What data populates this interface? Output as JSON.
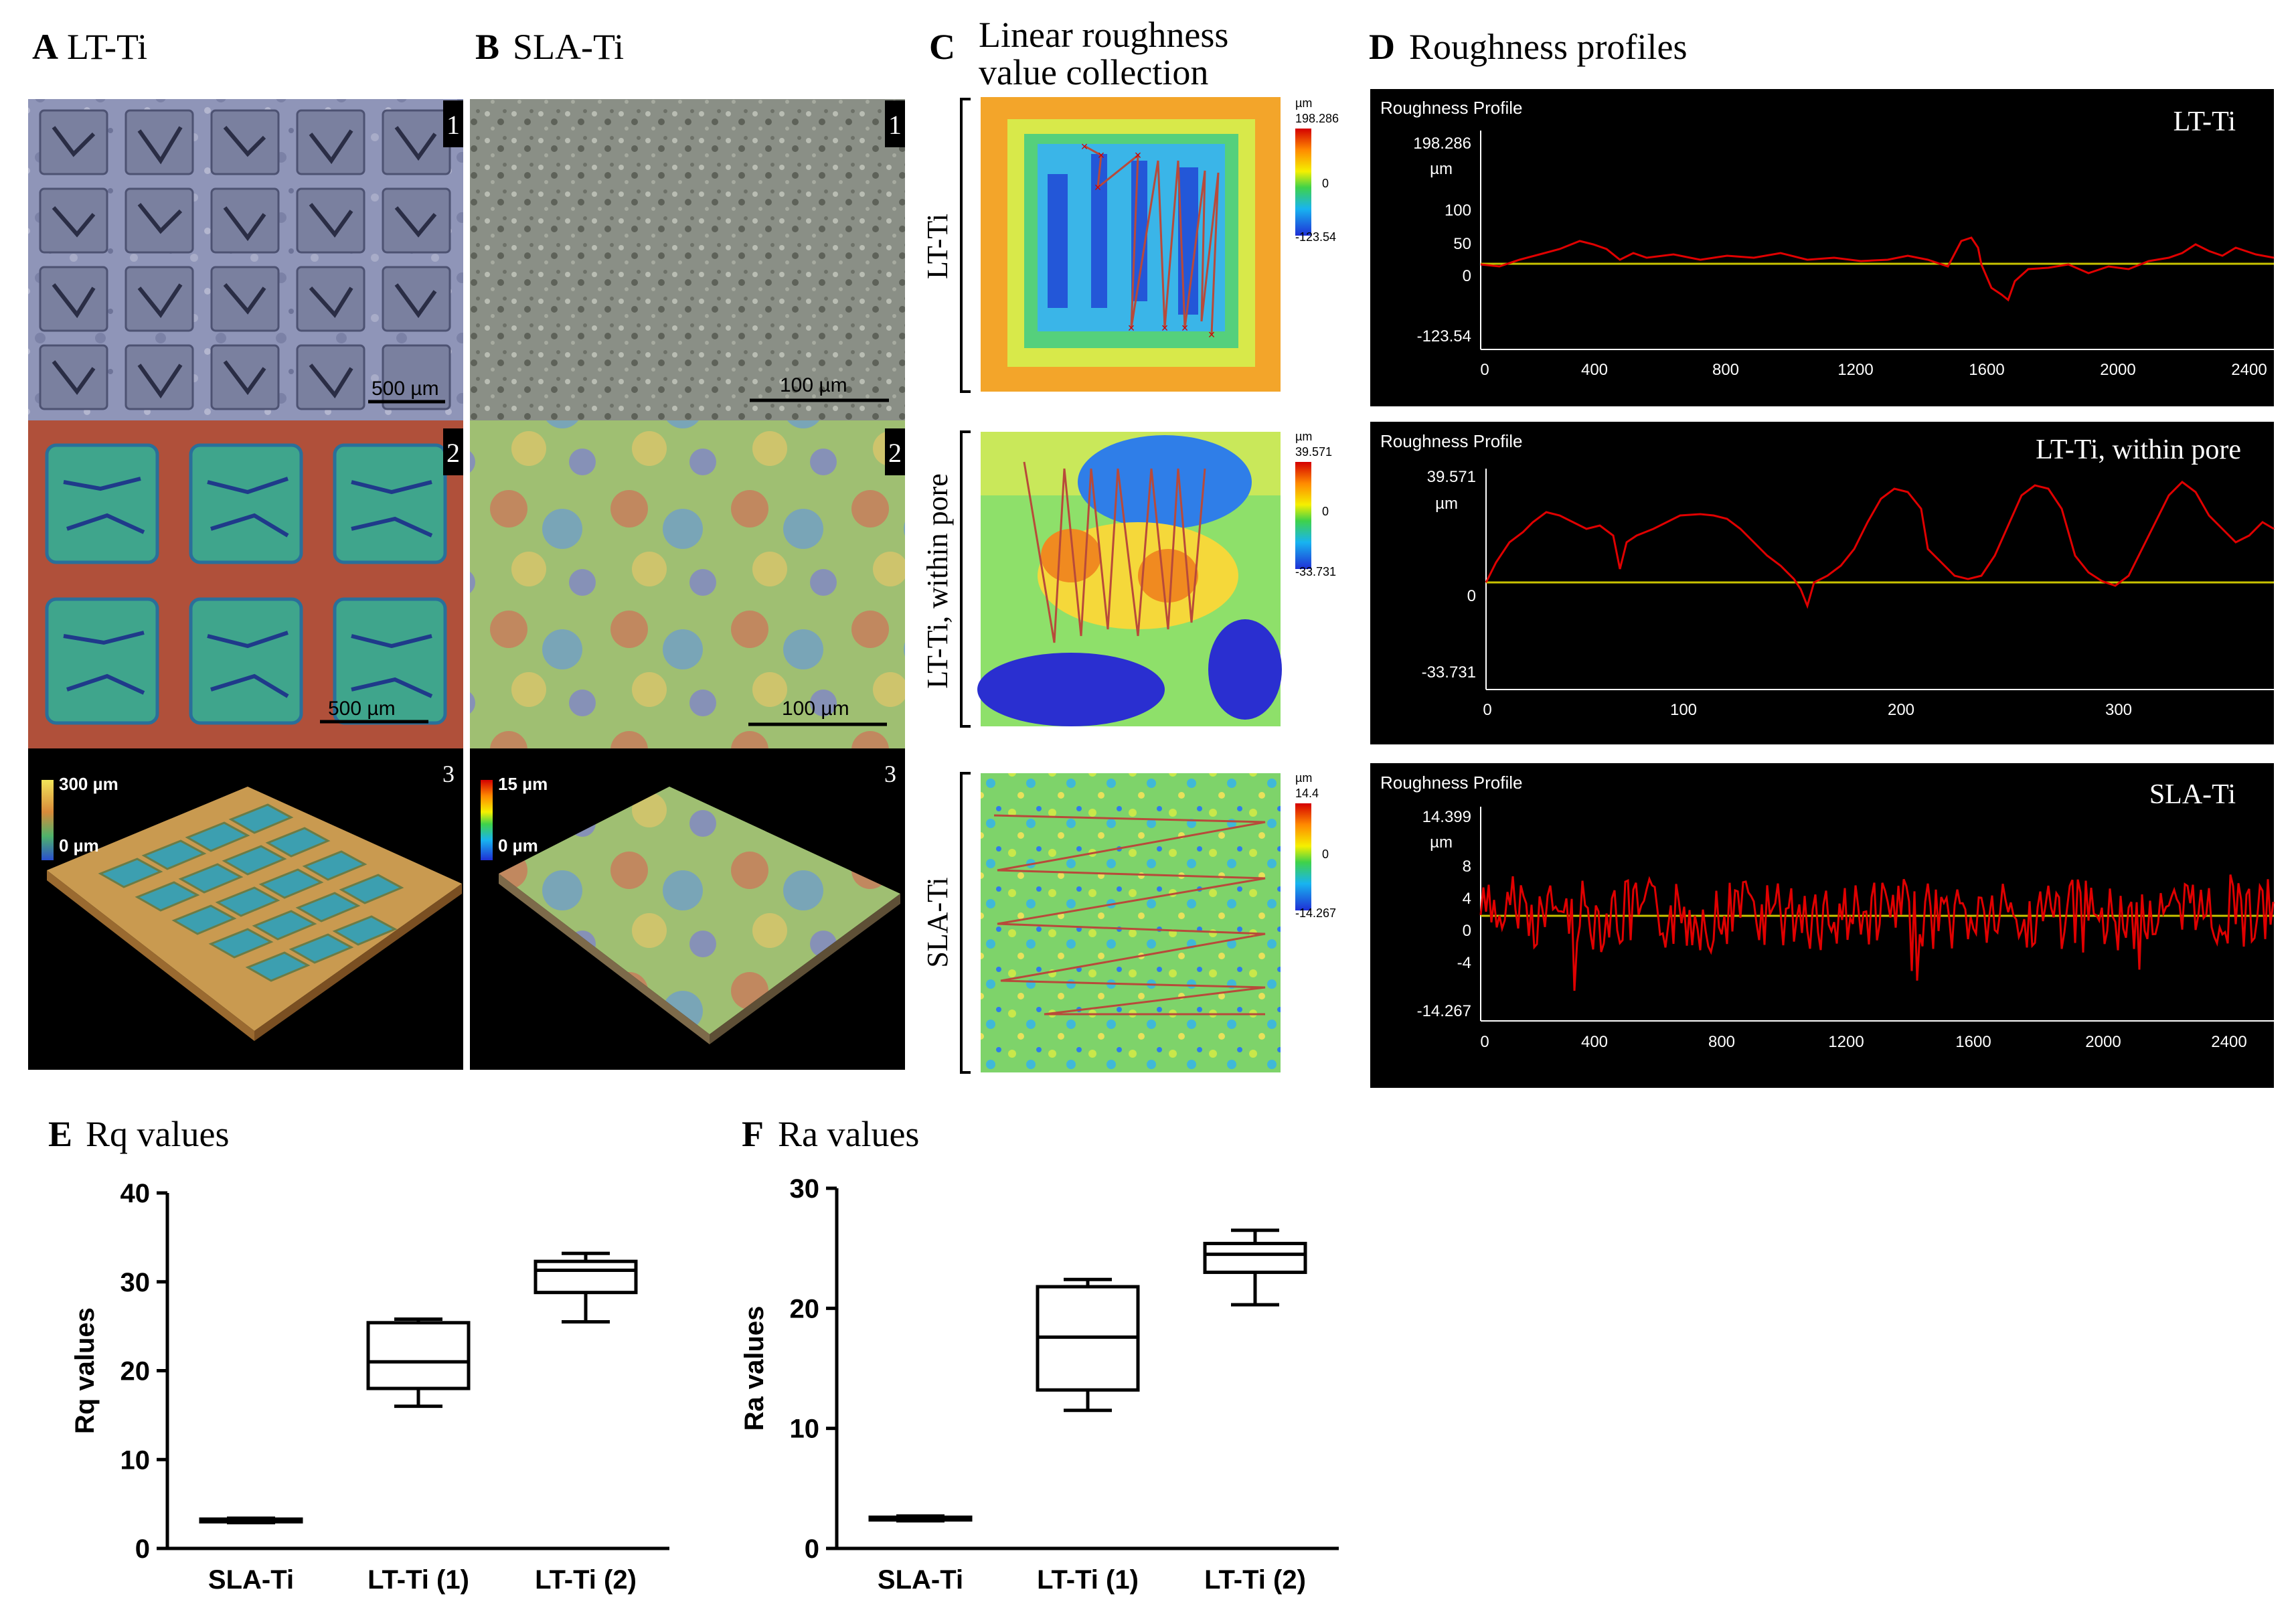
{
  "panels": {
    "A": {
      "letter": "A",
      "title": "LT-Ti",
      "scale1": "500 µm",
      "scale2": "500 µm",
      "bar3_top": "300 µm",
      "bar3_bot": "0 µm"
    },
    "B": {
      "letter": "B",
      "title": "SLA-Ti",
      "scale1": "100 µm",
      "scale2": "100 µm",
      "bar3_top": "15 µm",
      "bar3_bot": "0 µm"
    },
    "C": {
      "letter": "C",
      "title_line1": "Linear roughness",
      "title_line2": "value collection",
      "maps": [
        {
          "side_label": "LT-Ti",
          "unit": "µm",
          "max": "198.286",
          "mid": "0",
          "min": "-123.54"
        },
        {
          "side_label": "LT-Ti, within  pore",
          "unit": "µm",
          "max": "39.571",
          "mid": "0",
          "min": "-33.731"
        },
        {
          "side_label": "SLA-Ti",
          "unit": "µm",
          "max": "14.4",
          "mid": "0",
          "min": "-14.267"
        }
      ]
    },
    "D": {
      "letter": "D",
      "title": "Roughness profiles",
      "profiles": [
        {
          "header": "Roughness Profile",
          "label": "LT-Ti",
          "unit": "µm",
          "yticks": [
            "198.286",
            "100",
            "50",
            "0",
            "-123.54"
          ],
          "xticks": [
            "0",
            "400",
            "800",
            "1200",
            "1600",
            "2000",
            "2400"
          ]
        },
        {
          "header": "Roughness Profile",
          "label": "LT-Ti, within pore",
          "unit": "µm",
          "yticks": [
            "39.571",
            "0",
            "-33.731"
          ],
          "xticks": [
            "0",
            "100",
            "200",
            "300"
          ]
        },
        {
          "header": "Roughness Profile",
          "label": "SLA-Ti",
          "unit": "µm",
          "yticks": [
            "14.399",
            "8",
            "4",
            "0",
            "-4",
            "-14.267"
          ],
          "xticks": [
            "0",
            "400",
            "800",
            "1200",
            "1600",
            "2000",
            "2400"
          ]
        }
      ]
    },
    "E": {
      "letter": "E",
      "title": "Rq values"
    },
    "F": {
      "letter": "F",
      "title": "Ra values"
    },
    "sub": [
      "1",
      "2",
      "3"
    ]
  },
  "colors": {
    "profile_line": "#e00000",
    "zero_line": "#c9c200",
    "marker": "#cc0000"
  },
  "chart_data": [
    {
      "type": "box",
      "title": "Rq values",
      "xlabel": "",
      "ylabel": "Rq values",
      "ylim": [
        0,
        40
      ],
      "yticks": [
        0,
        10,
        20,
        30,
        40
      ],
      "categories": [
        "SLA-Ti",
        "LT-Ti (1)",
        "LT-Ti (2)"
      ],
      "boxes": [
        {
          "min": 2.9,
          "q1": 3.0,
          "median": 3.1,
          "q3": 3.3,
          "max": 3.4
        },
        {
          "min": 16.0,
          "q1": 18.0,
          "median": 21.0,
          "q3": 25.4,
          "max": 25.8
        },
        {
          "min": 25.5,
          "q1": 28.8,
          "median": 31.3,
          "q3": 32.3,
          "max": 33.2
        }
      ]
    },
    {
      "type": "box",
      "title": "Ra values",
      "xlabel": "",
      "ylabel": "Ra values",
      "ylim": [
        0,
        30
      ],
      "yticks": [
        0,
        10,
        20,
        30
      ],
      "categories": [
        "SLA-Ti",
        "LT-Ti (1)",
        "LT-Ti (2)"
      ],
      "boxes": [
        {
          "min": 2.3,
          "q1": 2.4,
          "median": 2.5,
          "q3": 2.6,
          "max": 2.7
        },
        {
          "min": 11.5,
          "q1": 13.2,
          "median": 17.6,
          "q3": 21.8,
          "max": 22.4
        },
        {
          "min": 20.3,
          "q1": 23.0,
          "median": 24.5,
          "q3": 25.4,
          "max": 26.5
        }
      ]
    }
  ]
}
